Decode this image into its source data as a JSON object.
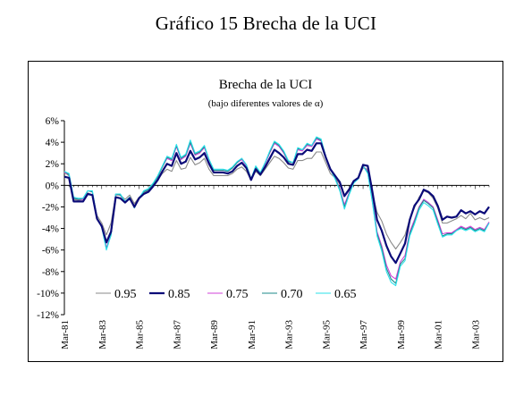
{
  "page": {
    "title": "Gráfico 15 Brecha de la UCI"
  },
  "chart_data": {
    "type": "line",
    "title": "Brecha de la UCI",
    "subtitle": "(bajo diferentes valores de α)",
    "ylim": [
      -12,
      6
    ],
    "y_ticks": [
      6,
      4,
      2,
      0,
      -2,
      -4,
      -6,
      -8,
      -10,
      -12
    ],
    "y_tick_labels": [
      "6%",
      "4%",
      "2%",
      "0%",
      "-2%",
      "-4%",
      "-6%",
      "-8%",
      "-10%",
      "-12%"
    ],
    "y_unit": "%",
    "x_tick_labels": [
      "Mar-81",
      "Mar-83",
      "Mar-85",
      "Mar-87",
      "Mar-89",
      "Mar-91",
      "Mar-93",
      "Mar-95",
      "Mar-97",
      "Mar-99",
      "Mar-01",
      "Mar-03"
    ],
    "x_range": [
      "1981Q1",
      "2003Q4"
    ],
    "legend_position": "bottom-left",
    "grid": false,
    "series": [
      {
        "name": "0.95",
        "color": "#8a8a8a",
        "width": 1.1,
        "values": [
          1.2,
          0.9,
          -1.3,
          -1.4,
          -1.3,
          -0.7,
          -0.9,
          -2.8,
          -3.5,
          -4.6,
          -3.5,
          -0.9,
          -0.9,
          -1.3,
          -0.9,
          -1.7,
          -1.1,
          -0.7,
          -0.5,
          -0.1,
          0.5,
          1.1,
          1.5,
          1.3,
          2.3,
          1.5,
          1.6,
          2.6,
          1.9,
          2.1,
          2.5,
          1.5,
          0.9,
          0.9,
          0.9,
          0.9,
          1.1,
          1.5,
          1.7,
          1.3,
          0.5,
          1.3,
          0.9,
          1.5,
          2.1,
          2.7,
          2.5,
          2.1,
          1.6,
          1.5,
          2.3,
          2.3,
          2.5,
          2.5,
          3.1,
          3.1,
          2.1,
          1.1,
          0.7,
          0.1,
          -0.9,
          -0.3,
          0.4,
          0.7,
          1.6,
          1.5,
          -0.7,
          -2.5,
          -3.3,
          -4.5,
          -5.3,
          -5.9,
          -5.3,
          -4.6,
          -3.1,
          -2.1,
          -1.1,
          -0.5,
          -0.7,
          -1.2,
          -2.1,
          -3.5,
          -3.5,
          -3.3,
          -3.1,
          -2.8,
          -3.1,
          -2.6,
          -3.2,
          -3.0,
          -3.2,
          -3.0
        ]
      },
      {
        "name": "0.85",
        "color": "#0a0a78",
        "width": 2.2,
        "values": [
          0.8,
          0.7,
          -1.5,
          -1.5,
          -1.5,
          -0.8,
          -0.9,
          -3.1,
          -3.8,
          -5.3,
          -4.3,
          -1.1,
          -1.2,
          -1.6,
          -1.2,
          -2.0,
          -1.2,
          -0.8,
          -0.6,
          -0.1,
          0.5,
          1.3,
          2.0,
          1.8,
          3.0,
          2.0,
          2.2,
          3.2,
          2.4,
          2.6,
          3.0,
          2.0,
          1.2,
          1.2,
          1.2,
          1.1,
          1.3,
          1.8,
          2.1,
          1.6,
          0.5,
          1.5,
          1.0,
          1.7,
          2.5,
          3.3,
          3.0,
          2.6,
          2.0,
          1.9,
          2.9,
          2.9,
          3.3,
          3.2,
          3.9,
          3.9,
          2.6,
          1.5,
          0.9,
          0.3,
          -1.0,
          -0.4,
          0.4,
          0.7,
          1.9,
          1.8,
          -0.6,
          -3.2,
          -4.2,
          -5.6,
          -6.6,
          -7.2,
          -6.3,
          -5.4,
          -3.2,
          -1.9,
          -1.3,
          -0.4,
          -0.6,
          -1.0,
          -1.9,
          -3.2,
          -2.9,
          -3.0,
          -2.9,
          -2.3,
          -2.6,
          -2.4,
          -2.7,
          -2.4,
          -2.6,
          -2.0
        ]
      },
      {
        "name": "0.75",
        "color": "#d040d8",
        "width": 1.1,
        "values": [
          1.2,
          1.0,
          -1.2,
          -1.3,
          -1.3,
          -0.5,
          -0.6,
          -3.0,
          -3.9,
          -5.8,
          -4.5,
          -0.8,
          -0.9,
          -1.5,
          -1.1,
          -2.1,
          -1.2,
          -0.6,
          -0.4,
          0.1,
          0.8,
          1.7,
          2.5,
          2.3,
          3.6,
          2.4,
          2.7,
          3.9,
          2.8,
          3.0,
          3.5,
          2.3,
          1.4,
          1.4,
          1.4,
          1.3,
          1.6,
          2.1,
          2.4,
          1.8,
          0.6,
          1.7,
          1.1,
          2.0,
          3.0,
          3.9,
          3.6,
          3.0,
          2.2,
          2.1,
          3.3,
          3.2,
          3.7,
          3.6,
          4.3,
          4.1,
          2.7,
          1.5,
          0.7,
          -0.3,
          -1.8,
          -0.7,
          0.3,
          0.7,
          1.8,
          1.3,
          -1.3,
          -4.3,
          -5.6,
          -7.4,
          -8.4,
          -8.7,
          -7.1,
          -6.5,
          -4.3,
          -3.2,
          -2.0,
          -1.3,
          -1.6,
          -2.0,
          -3.2,
          -4.5,
          -4.4,
          -4.4,
          -4.1,
          -3.8,
          -4.0,
          -3.8,
          -4.1,
          -3.9,
          -4.1,
          -3.4
        ]
      },
      {
        "name": "0.70",
        "color": "#1b8a8a",
        "width": 1.1,
        "values": [
          1.3,
          1.0,
          -1.2,
          -1.3,
          -1.2,
          -0.5,
          -0.6,
          -3.0,
          -3.9,
          -5.9,
          -4.6,
          -0.8,
          -0.9,
          -1.5,
          -1.1,
          -2.1,
          -1.2,
          -0.6,
          -0.4,
          0.1,
          0.8,
          1.7,
          2.6,
          2.4,
          3.7,
          2.5,
          2.8,
          4.0,
          2.9,
          3.1,
          3.6,
          2.4,
          1.4,
          1.4,
          1.4,
          1.3,
          1.6,
          2.1,
          2.5,
          1.9,
          0.6,
          1.7,
          1.1,
          2.1,
          3.1,
          4.0,
          3.7,
          3.1,
          2.2,
          2.1,
          3.4,
          3.3,
          3.8,
          3.7,
          4.4,
          4.2,
          2.7,
          1.5,
          0.7,
          -0.4,
          -2.0,
          -0.8,
          0.3,
          0.7,
          1.8,
          1.2,
          -1.5,
          -4.5,
          -5.8,
          -7.7,
          -8.7,
          -9.1,
          -7.3,
          -6.8,
          -4.5,
          -3.4,
          -2.1,
          -1.4,
          -1.7,
          -2.1,
          -3.4,
          -4.7,
          -4.5,
          -4.5,
          -4.2,
          -3.9,
          -4.1,
          -3.9,
          -4.2,
          -4.0,
          -4.2,
          -3.5
        ]
      },
      {
        "name": "0.65",
        "color": "#2ae0ea",
        "width": 1.1,
        "values": [
          1.3,
          1.1,
          -1.1,
          -1.2,
          -1.2,
          -0.5,
          -0.5,
          -3.0,
          -3.9,
          -6.0,
          -4.6,
          -0.8,
          -0.8,
          -1.5,
          -1.1,
          -2.1,
          -1.2,
          -0.5,
          -0.3,
          0.2,
          0.9,
          1.8,
          2.7,
          2.5,
          3.8,
          2.6,
          2.9,
          4.2,
          3.0,
          3.2,
          3.7,
          2.4,
          1.5,
          1.5,
          1.5,
          1.4,
          1.7,
          2.2,
          2.5,
          1.9,
          0.6,
          1.8,
          1.2,
          2.1,
          3.2,
          4.1,
          3.8,
          3.2,
          2.3,
          2.1,
          3.5,
          3.3,
          3.9,
          3.7,
          4.5,
          4.3,
          2.7,
          1.5,
          0.6,
          -0.5,
          -2.2,
          -0.9,
          0.2,
          0.6,
          1.8,
          1.1,
          -1.6,
          -4.7,
          -6.1,
          -8.0,
          -9.0,
          -9.3,
          -7.5,
          -7.0,
          -4.7,
          -3.6,
          -2.3,
          -1.6,
          -1.9,
          -2.3,
          -3.6,
          -4.8,
          -4.6,
          -4.6,
          -4.2,
          -4.0,
          -4.2,
          -4.0,
          -4.3,
          -4.1,
          -4.3,
          -3.5
        ]
      }
    ]
  }
}
